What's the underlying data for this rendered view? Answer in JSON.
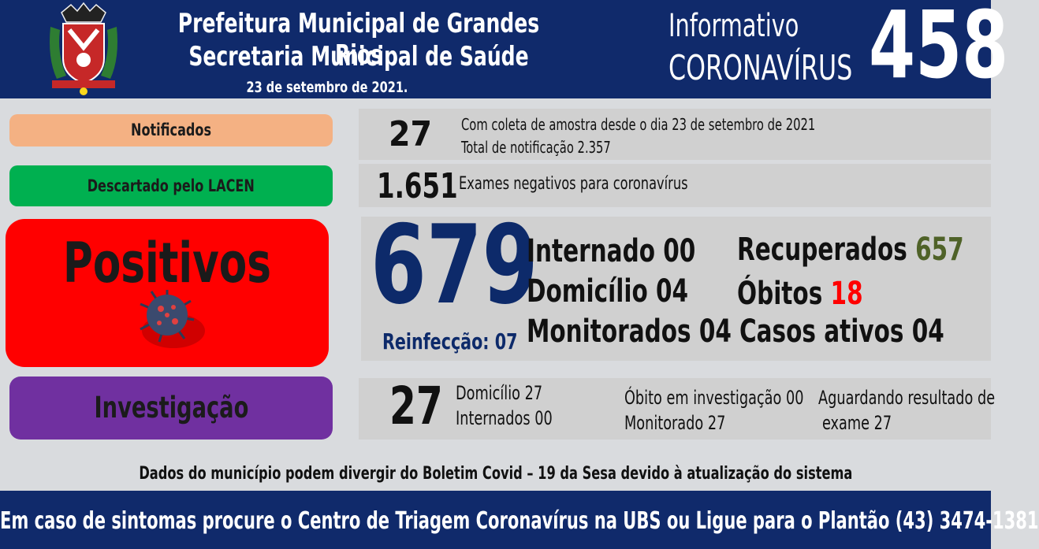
{
  "header": {
    "line1": "Prefeitura Municipal de Grandes Rios",
    "line2": "Secretaria Municipal de Saúde",
    "date": "23 de setembro  de 2021.",
    "informativo": "Informativo",
    "coronavirus": "CORONAVÍRUS",
    "number": "458"
  },
  "notificados": {
    "label": "Notificados",
    "value": "27",
    "line1": "Com coleta de amostra desde o dia 23 de setembro de 2021",
    "line2": "Total de notificação  2.357"
  },
  "descartado": {
    "label": "Descartado  pelo LACEN",
    "value": "1.651",
    "line1": "Exames negativos  para coronavírus"
  },
  "positivos": {
    "label": "Positivos",
    "value": "679",
    "reinfeccao": "Reinfecção:  07",
    "internado": "Internado 00",
    "domicilio": "Domicílio 04",
    "monitorados": "Monitorados 04",
    "recuperados_label": "Recuperados ",
    "recuperados_value": "657",
    "obitos_label": "Óbitos ",
    "obitos_value": "18",
    "casos_ativos": "Casos ativos 04"
  },
  "investigacao": {
    "label": "Investigação",
    "value": "27",
    "domicilio": "Domicílio 27",
    "internados": "Internados 00",
    "obito": "Óbito  em investigação  00",
    "monitorado": "Monitorado  27",
    "aguardando1": "Aguardando resultado de",
    "aguardando2": "exame 27"
  },
  "note": "Dados do município  podem  divergir  do Boletim  Covid – 19 da Sesa devido à atualização  do sistema",
  "footer": "Em caso de sintomas  procure  o Centro de Triagem  Coronavírus  na UBS ou Ligue  para o Plantão  (43) 3474-1381",
  "colors": {
    "navy": "#102a6b",
    "notificados": "#f4b183",
    "descartado": "#00b050",
    "positivos": "#ff0000",
    "investigacao": "#7030a0",
    "recuperados": "#4f6228"
  }
}
